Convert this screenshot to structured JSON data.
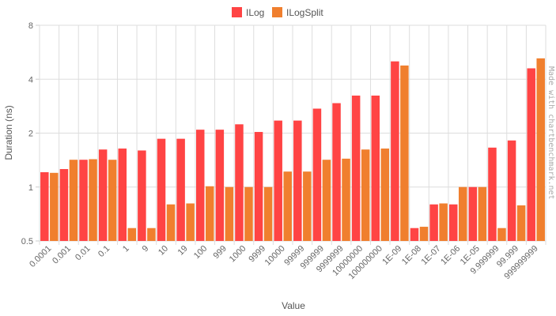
{
  "chart_data": {
    "type": "bar",
    "title": "",
    "xlabel": "Value",
    "ylabel": "Duration (ns)",
    "y_scale": "log2",
    "ylim": [
      0.5,
      8
    ],
    "yticks": [
      "0.5",
      "1",
      "2",
      "4",
      "8"
    ],
    "grid": true,
    "legend_position": "top-center",
    "categories": [
      "0.0001",
      "0.001",
      "0.01",
      "0.1",
      "1",
      "9",
      "10",
      "19",
      "100",
      "999",
      "1000",
      "9999",
      "10000",
      "99999",
      "999999",
      "9999999",
      "10000000",
      "100000000",
      "1E-09",
      "1E-08",
      "1E-07",
      "1E-06",
      "1E-05",
      "9.999999",
      "99.999",
      "999999999"
    ],
    "series": [
      {
        "name": "ILog",
        "color": "#ff4444",
        "values": [
          1.21,
          1.26,
          1.42,
          1.62,
          1.64,
          1.6,
          1.86,
          1.86,
          2.09,
          2.09,
          2.24,
          2.03,
          2.35,
          2.35,
          2.74,
          2.94,
          3.24,
          3.24,
          5.03,
          0.59,
          0.8,
          0.8,
          1.0,
          1.66,
          1.82,
          4.6
        ],
        "color_name": "red"
      },
      {
        "name": "ILogSplit",
        "color": "#f07f2e",
        "values": [
          1.2,
          1.42,
          1.43,
          1.42,
          0.59,
          0.59,
          0.8,
          0.81,
          1.01,
          1.0,
          1.0,
          1.0,
          1.22,
          1.22,
          1.42,
          1.44,
          1.62,
          1.64,
          4.77,
          0.6,
          0.81,
          1.0,
          1.0,
          0.59,
          0.79,
          5.23
        ],
        "color_name": "orange"
      }
    ]
  },
  "watermark": "Made with chartbenchmark.net"
}
